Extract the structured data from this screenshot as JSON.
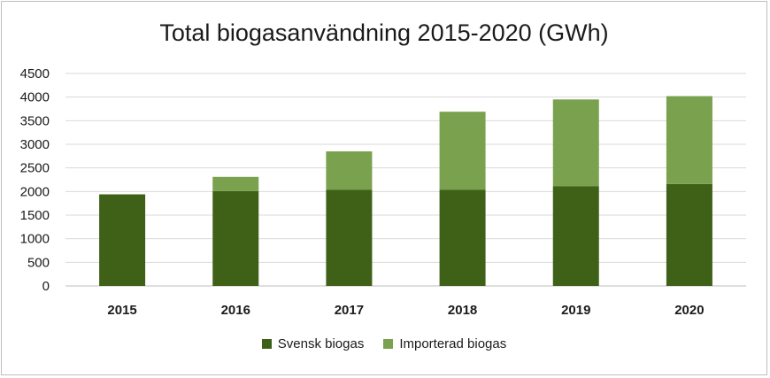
{
  "chart_data": {
    "type": "bar",
    "stacked": true,
    "title": "Total biogasanvändning 2015-2020 (GWh)",
    "xlabel": "",
    "ylabel": "",
    "categories": [
      "2015",
      "2016",
      "2017",
      "2018",
      "2019",
      "2020"
    ],
    "ylim": [
      0,
      4500
    ],
    "yticks": [
      0,
      500,
      1000,
      1500,
      2000,
      2500,
      3000,
      3500,
      4000,
      4500
    ],
    "grid": true,
    "legend_position": "bottom",
    "series": [
      {
        "name": "Svensk biogas",
        "color": "#3f6117",
        "values": [
          1940,
          2010,
          2040,
          2040,
          2110,
          2160
        ]
      },
      {
        "name": "Importerad biogas",
        "color": "#7aa14d",
        "values": [
          0,
          300,
          810,
          1650,
          1840,
          1860
        ]
      }
    ]
  }
}
